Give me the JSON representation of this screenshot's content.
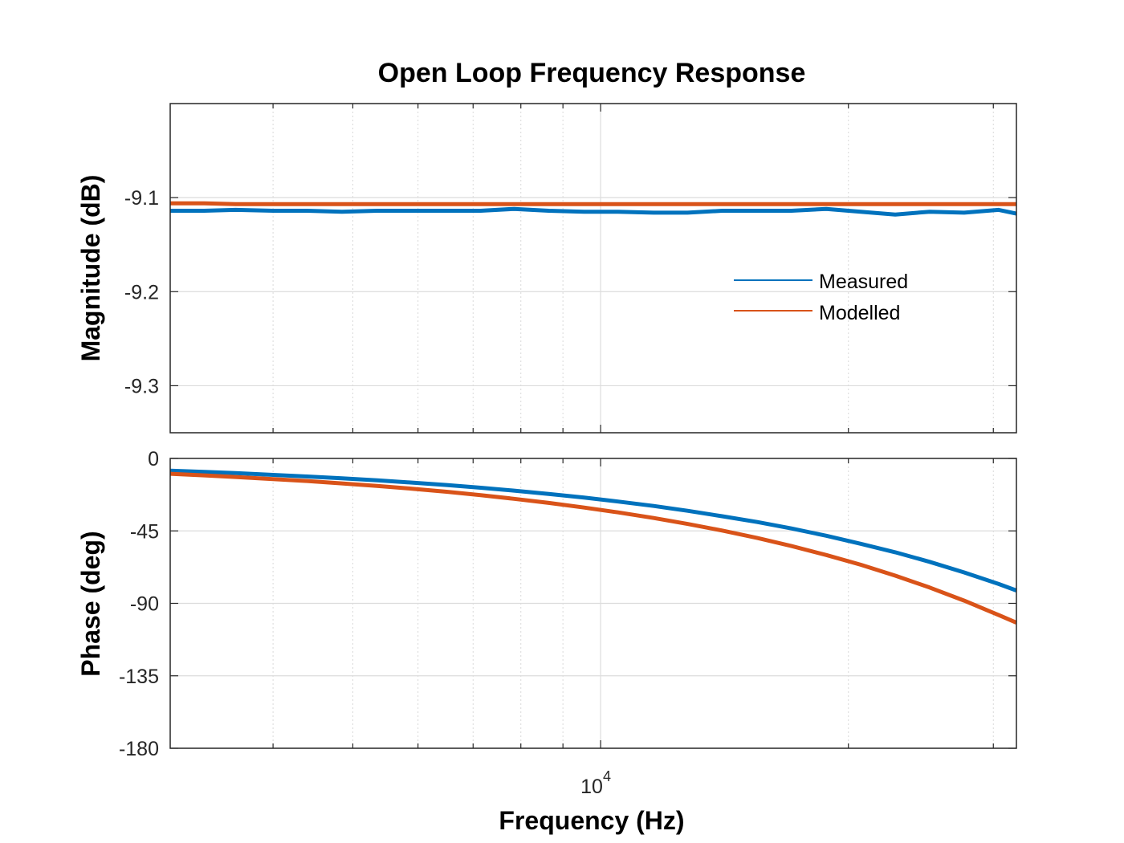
{
  "chart_data": {
    "type": "line",
    "title": "Open Loop Frequency Response",
    "xlabel": "Frequency  (Hz)",
    "xscale": "log",
    "xlim": [
      3000,
      32000
    ],
    "x_tick_label": {
      "base": "10",
      "exponent": "4",
      "value": 10000
    },
    "x": [
      3000,
      3300,
      3600,
      4000,
      4400,
      4850,
      5350,
      5900,
      6500,
      7150,
      7850,
      8650,
      9550,
      10500,
      11600,
      12750,
      14050,
      15500,
      17050,
      18800,
      20700,
      22800,
      25100,
      27650,
      30450,
      32000
    ],
    "panels": [
      {
        "name": "magnitude",
        "ylabel": "Magnitude (dB)",
        "ylim": [
          -9.35,
          -9.0
        ],
        "yticks": [
          -9.1,
          -9.2,
          -9.3
        ],
        "ytick_labels": [
          "-9.1",
          "-9.2",
          "-9.3"
        ],
        "series": [
          {
            "name": "Measured",
            "color": "#0072BD",
            "values": [
              -9.114,
              -9.114,
              -9.113,
              -9.114,
              -9.114,
              -9.115,
              -9.114,
              -9.114,
              -9.114,
              -9.114,
              -9.112,
              -9.114,
              -9.115,
              -9.115,
              -9.116,
              -9.116,
              -9.114,
              -9.114,
              -9.114,
              -9.112,
              -9.115,
              -9.118,
              -9.115,
              -9.116,
              -9.113,
              -9.117
            ]
          },
          {
            "name": "Modelled",
            "color": "#D95319",
            "values": [
              -9.106,
              -9.106,
              -9.107,
              -9.107,
              -9.107,
              -9.107,
              -9.107,
              -9.107,
              -9.107,
              -9.107,
              -9.107,
              -9.107,
              -9.107,
              -9.107,
              -9.107,
              -9.107,
              -9.107,
              -9.107,
              -9.107,
              -9.107,
              -9.107,
              -9.107,
              -9.107,
              -9.107,
              -9.107,
              -9.107
            ]
          }
        ]
      },
      {
        "name": "phase",
        "ylabel": "Phase (deg)",
        "ylim": [
          -180,
          0
        ],
        "yticks": [
          0,
          -45,
          -90,
          -135,
          -180
        ],
        "ytick_labels": [
          "0",
          "-45",
          "-90",
          "-135",
          "-180"
        ],
        "series": [
          {
            "name": "Measured",
            "color": "#0072BD",
            "values": [
              -7.6,
              -8.4,
              -9.1,
              -10.2,
              -11.2,
              -12.3,
              -13.6,
              -15.0,
              -16.5,
              -18.2,
              -20.0,
              -22.1,
              -24.3,
              -26.8,
              -29.5,
              -32.5,
              -35.9,
              -39.5,
              -43.5,
              -48.0,
              -53.0,
              -58.3,
              -64.2,
              -70.8,
              -78.0,
              -82.0
            ]
          },
          {
            "name": "Modelled",
            "color": "#D95319",
            "values": [
              -9.5,
              -10.5,
              -11.5,
              -12.8,
              -14.0,
              -15.5,
              -17.1,
              -18.8,
              -20.7,
              -22.8,
              -25.1,
              -27.6,
              -30.5,
              -33.5,
              -37.0,
              -40.7,
              -44.8,
              -49.4,
              -54.4,
              -60.0,
              -66.0,
              -72.8,
              -80.2,
              -88.3,
              -97.3,
              -102.0
            ]
          }
        ]
      }
    ],
    "legend": {
      "entries": [
        "Measured",
        "Modelled"
      ],
      "placement": "inside-right"
    },
    "grid": true
  }
}
